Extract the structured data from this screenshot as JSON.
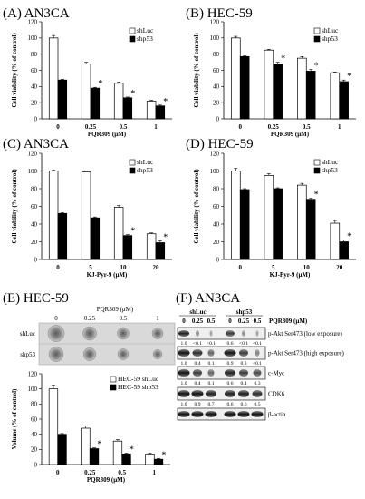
{
  "chart_data": [
    {
      "panel": "(A) AN3CA",
      "type": "bar",
      "ylabel": "Cell viability (% of control)",
      "xlabel": "PQR309 (μM)",
      "ylim": [
        0,
        120
      ],
      "yticks": [
        0,
        20,
        40,
        60,
        80,
        100,
        120
      ],
      "categories": [
        "0",
        "0.25",
        "0.5",
        "1"
      ],
      "series": [
        {
          "name": "shLuc",
          "values": [
            100,
            68,
            44,
            22
          ],
          "errors": [
            3,
            2,
            1.5,
            1
          ]
        },
        {
          "name": "shp53",
          "values": [
            48,
            38,
            26,
            16
          ],
          "errors": [
            1,
            1,
            1,
            1
          ]
        }
      ],
      "significant": [
        false,
        true,
        true,
        true
      ],
      "star": "*"
    },
    {
      "panel": "(B) HEC-59",
      "type": "bar",
      "ylabel": "Cell viability (% of control)",
      "xlabel": "PQR309 (μM)",
      "ylim": [
        0,
        120
      ],
      "yticks": [
        0,
        20,
        40,
        60,
        80,
        100,
        120
      ],
      "categories": [
        "0",
        "0.25",
        "0.5",
        "1"
      ],
      "series": [
        {
          "name": "shLuc",
          "values": [
            100,
            85,
            75,
            57
          ],
          "errors": [
            2,
            1,
            2,
            1
          ]
        },
        {
          "name": "shp53",
          "values": [
            77,
            68,
            59,
            46
          ],
          "errors": [
            1,
            2,
            2,
            2
          ]
        }
      ],
      "significant": [
        false,
        true,
        true,
        true
      ],
      "star": "*"
    },
    {
      "panel": "(C) AN3CA",
      "type": "bar",
      "ylabel": "Cell viability (% of control)",
      "xlabel": "KJ-Pyr-9 (μM)",
      "ylim": [
        0,
        120
      ],
      "yticks": [
        0,
        20,
        40,
        60,
        80,
        100,
        120
      ],
      "categories": [
        "0",
        "5",
        "10",
        "20"
      ],
      "series": [
        {
          "name": "shLuc",
          "values": [
            100,
            99,
            59,
            29
          ],
          "errors": [
            1,
            1,
            2,
            1
          ]
        },
        {
          "name": "shp53",
          "values": [
            52,
            47,
            27,
            19
          ],
          "errors": [
            1,
            1,
            1,
            2
          ]
        }
      ],
      "significant": [
        false,
        false,
        true,
        true
      ],
      "star": "*"
    },
    {
      "panel": "(D) HEC-59",
      "type": "bar",
      "ylabel": "Cell viability (% of control)",
      "xlabel": "KJ-Pyr-9 (μM)",
      "ylim": [
        0,
        120
      ],
      "yticks": [
        0,
        20,
        40,
        60,
        80,
        100,
        120
      ],
      "categories": [
        "0",
        "5",
        "10",
        "20"
      ],
      "series": [
        {
          "name": "shLuc",
          "values": [
            100,
            95,
            84,
            41
          ],
          "errors": [
            3,
            2,
            2,
            3
          ]
        },
        {
          "name": "shp53",
          "values": [
            79,
            80,
            68,
            20
          ],
          "errors": [
            1,
            1,
            1,
            2
          ]
        }
      ],
      "significant": [
        false,
        false,
        true,
        true
      ],
      "star": "*"
    },
    {
      "panel": "(E) HEC-59",
      "type": "bar",
      "ylabel": "Volume (% of control)",
      "xlabel": "PQR309 (μM)",
      "ylim": [
        0,
        120
      ],
      "yticks": [
        0,
        20,
        40,
        60,
        80,
        100,
        120
      ],
      "categories": [
        "0",
        "0.25",
        "0.5",
        "1"
      ],
      "series": [
        {
          "name": "HEC-59 shLuc",
          "values": [
            100,
            48,
            31,
            14
          ],
          "errors": [
            5,
            3,
            2,
            1
          ]
        },
        {
          "name": "HEC-59 shp53",
          "values": [
            40,
            21,
            14,
            7
          ],
          "errors": [
            1,
            1,
            1,
            1
          ]
        }
      ],
      "significant": [
        false,
        true,
        true,
        true
      ],
      "star": "*"
    }
  ],
  "spheroid": {
    "header": "PQR309 (μM)",
    "doses": [
      "0",
      "0.25",
      "0.5",
      "1"
    ],
    "rows": [
      "shLuc",
      "shp53"
    ]
  },
  "western": {
    "title": "(F) AN3CA",
    "groups": [
      "shLuc",
      "shp53"
    ],
    "doses": [
      "0",
      "0.25",
      "0.5",
      "0",
      "0.25",
      "0.5"
    ],
    "treatment_label": "PQR309 (μM)",
    "blots": [
      {
        "label": "p-Akt Ser473 (low exposure)",
        "values": [
          "1.0",
          "<0.1",
          "<0.1",
          "0.6",
          "<0.1",
          "<0.1"
        ]
      },
      {
        "label": "p-Akt Ser473 (high exposure)",
        "values": [
          "1.0",
          "0.4",
          "0.1",
          "0.9",
          "0.3",
          "<0.1"
        ]
      },
      {
        "label": "c-Myc",
        "values": [
          "1.0",
          "0.4",
          "0.1",
          "0.6",
          "0.4",
          "0.3"
        ]
      },
      {
        "label": "CDK6",
        "values": [
          "1.0",
          "0.9",
          "0.7",
          "0.6",
          "0.6",
          "0.5"
        ]
      },
      {
        "label": "β-actin",
        "values": []
      }
    ]
  }
}
